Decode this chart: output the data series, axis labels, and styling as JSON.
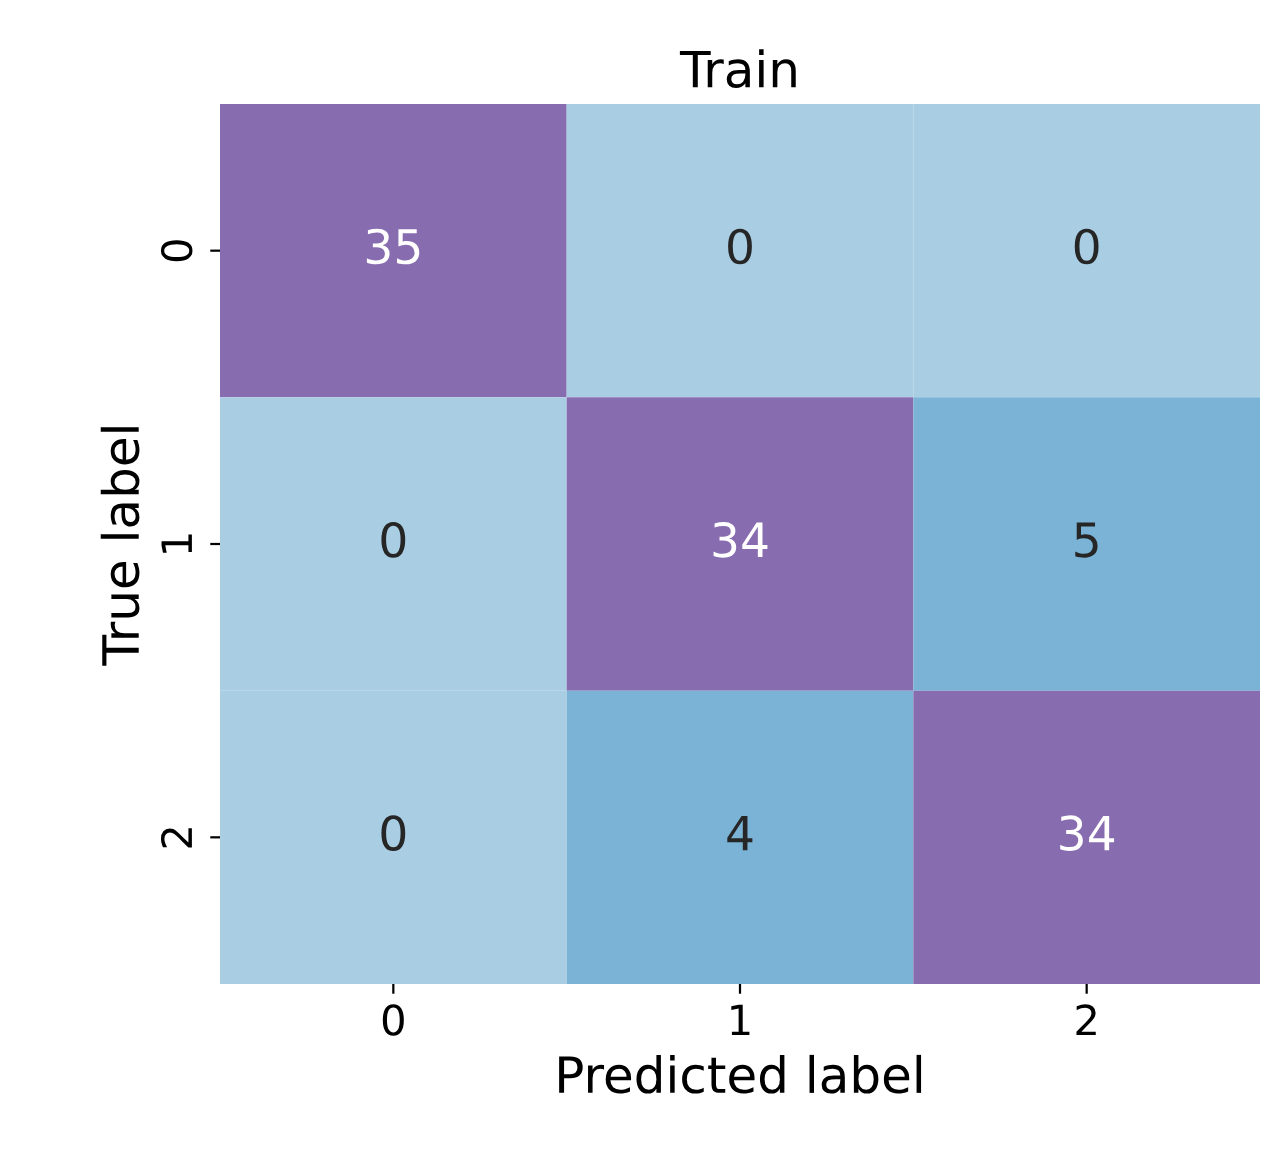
{
  "chart_data": {
    "type": "heatmap",
    "title": "Train",
    "xlabel": "Predicted label",
    "ylabel": "True label",
    "categories": [
      "0",
      "1",
      "2"
    ],
    "y_categories": [
      "0",
      "1",
      "2"
    ],
    "cells": [
      [
        35,
        0,
        0
      ],
      [
        0,
        34,
        5
      ],
      [
        0,
        4,
        34
      ]
    ],
    "colors": [
      [
        "#886cb0",
        "#a9cde3",
        "#a9cde3"
      ],
      [
        "#a9cde3",
        "#886cb0",
        "#7ab3d6"
      ],
      [
        "#a9cde3",
        "#7ab3d6",
        "#886cb0"
      ]
    ],
    "data_labels": true
  }
}
